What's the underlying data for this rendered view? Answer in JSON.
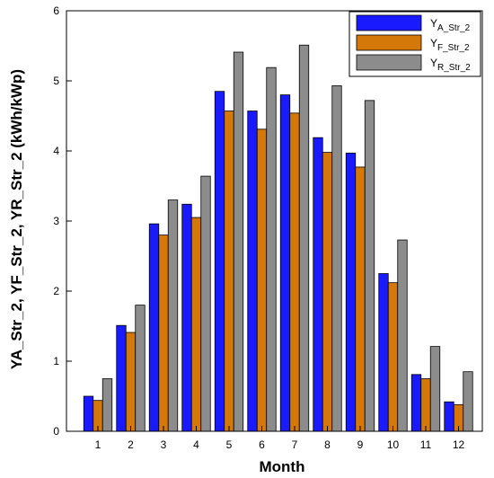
{
  "chart_data": {
    "type": "bar",
    "categories": [
      "1",
      "2",
      "3",
      "4",
      "5",
      "6",
      "7",
      "8",
      "9",
      "10",
      "11",
      "12"
    ],
    "series": [
      {
        "name": "YA_Str_2",
        "label_main": "Y",
        "label_sub": "A_Str_2",
        "color": "#1a1aff",
        "values": [
          0.5,
          1.51,
          2.96,
          3.24,
          4.85,
          4.57,
          4.8,
          4.19,
          3.97,
          2.25,
          0.81,
          0.42
        ]
      },
      {
        "name": "YF_Str_2",
        "label_main": "Y",
        "label_sub": "F_Str_2",
        "color": "#d4780a",
        "values": [
          0.44,
          1.41,
          2.8,
          3.05,
          4.57,
          4.31,
          4.54,
          3.98,
          3.77,
          2.12,
          0.75,
          0.38
        ]
      },
      {
        "name": "YR_Str_2",
        "label_main": "Y",
        "label_sub": "R_Str_2",
        "color": "#8c8c8c",
        "values": [
          0.75,
          1.8,
          3.3,
          3.64,
          5.41,
          5.19,
          5.51,
          4.93,
          4.72,
          2.73,
          1.21,
          0.85
        ]
      }
    ],
    "xlabel": "Month",
    "ylabel": "YA_Str_2, YF_Str_2, YR_Str_2 (kWh/kWp)",
    "ylim": [
      0,
      6
    ],
    "yticks": [
      "0",
      "1",
      "2",
      "3",
      "4",
      "5",
      "6"
    ],
    "grid": false,
    "legend_position": "top-right"
  }
}
